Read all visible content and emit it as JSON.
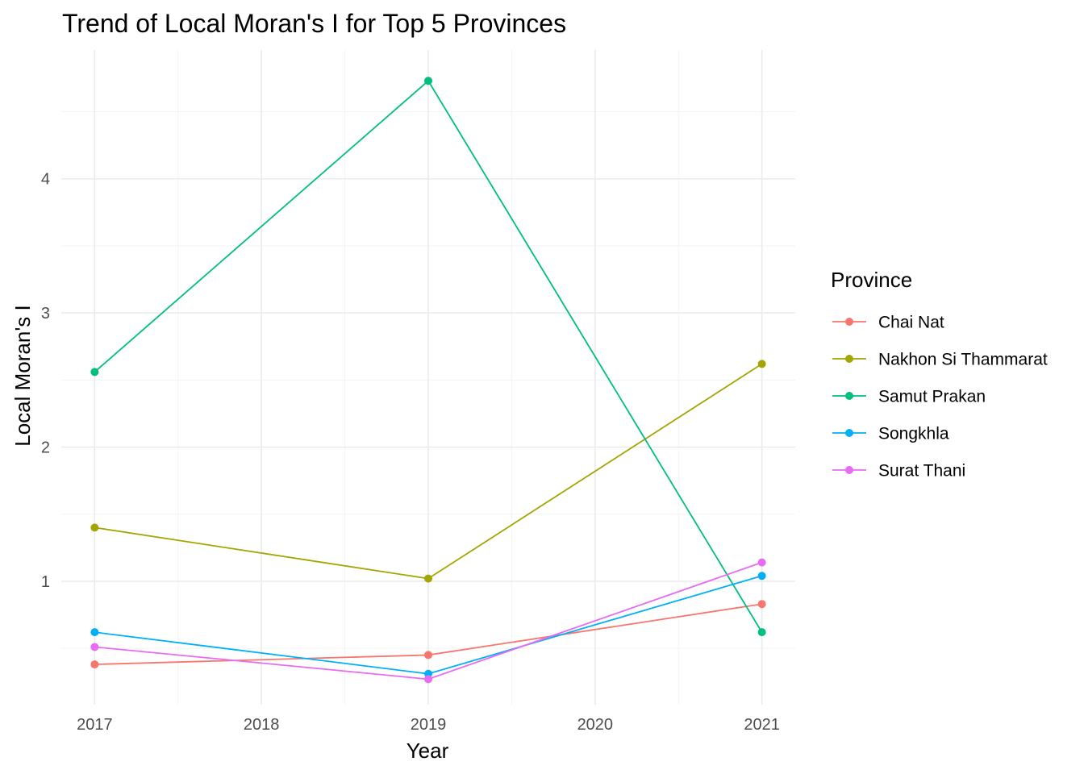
{
  "chart_data": {
    "type": "line",
    "title": "Trend of Local Moran's I for Top 5 Provinces",
    "xlabel": "Year",
    "ylabel": "Local Moran's I",
    "x": [
      2017,
      2019,
      2021
    ],
    "xticks": [
      2017,
      2018,
      2019,
      2020,
      2021
    ],
    "yticks": [
      1,
      2,
      3,
      4
    ],
    "xlim": [
      2016.8,
      2021.2
    ],
    "ylim": [
      0.08,
      4.96
    ],
    "grid": true,
    "legend": {
      "title": "Province",
      "position": "right"
    },
    "series": [
      {
        "name": "Chai Nat",
        "color": "#F8766D",
        "values": [
          0.38,
          0.45,
          0.83
        ]
      },
      {
        "name": "Nakhon Si Thammarat",
        "color": "#A3A500",
        "values": [
          1.4,
          1.02,
          2.62
        ]
      },
      {
        "name": "Samut Prakan",
        "color": "#00BF7D",
        "values": [
          2.56,
          4.73,
          0.62
        ]
      },
      {
        "name": "Songkhla",
        "color": "#00B0F6",
        "values": [
          0.62,
          0.31,
          1.04
        ]
      },
      {
        "name": "Surat Thani",
        "color": "#E76BF3",
        "values": [
          0.51,
          0.27,
          1.14
        ]
      }
    ]
  }
}
